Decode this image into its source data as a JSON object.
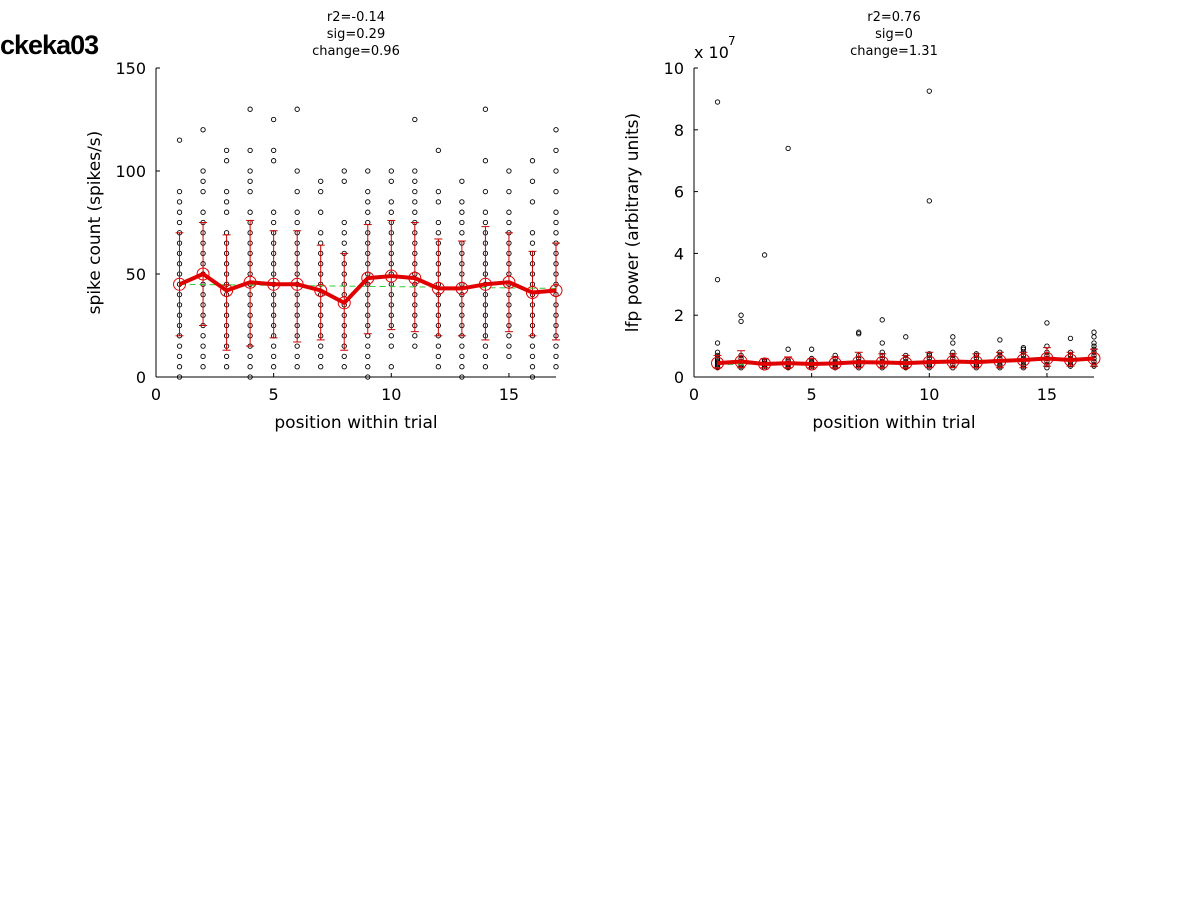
{
  "figure_title": "ckeka03",
  "colors": {
    "mean_line": "#e00000",
    "fit_line": "#33cc33",
    "points": "#000000",
    "error_bars": "#cc0000"
  },
  "chart_data": [
    {
      "type": "scatter",
      "stats": [
        "r2=-0.14",
        "sig=0.29",
        "change=0.96"
      ],
      "xlabel": "position within trial",
      "ylabel": "spike count (spikes/s)",
      "xlim": [
        0,
        17
      ],
      "ylim": [
        0,
        150
      ],
      "xticks": [
        "0",
        "5",
        "10",
        "15"
      ],
      "yticks": [
        "0",
        "50",
        "100",
        "150"
      ],
      "exponent_label": "",
      "x": [
        1,
        2,
        3,
        4,
        5,
        6,
        7,
        8,
        9,
        10,
        11,
        12,
        13,
        14,
        15,
        16,
        17
      ],
      "mean": [
        45,
        50,
        42,
        46,
        45,
        45,
        42,
        36,
        48,
        49,
        48,
        43,
        43,
        45,
        46,
        41,
        42
      ],
      "error_low": [
        20,
        25,
        13,
        15,
        19,
        17,
        18,
        13,
        21,
        23,
        22,
        20,
        20,
        18,
        22,
        20,
        18
      ],
      "error_high": [
        70,
        75,
        69,
        76,
        71,
        71,
        64,
        60,
        74,
        76,
        75,
        67,
        66,
        73,
        70,
        61,
        65
      ],
      "fit": {
        "start": 45,
        "end": 43
      },
      "points": [
        [
          1,
          [
            0,
            5,
            10,
            15,
            20,
            25,
            30,
            35,
            40,
            45,
            50,
            55,
            60,
            65,
            70,
            75,
            80,
            85,
            90,
            115
          ]
        ],
        [
          2,
          [
            5,
            10,
            15,
            20,
            25,
            30,
            35,
            40,
            45,
            50,
            55,
            60,
            65,
            70,
            75,
            80,
            90,
            95,
            100,
            120
          ]
        ],
        [
          3,
          [
            5,
            10,
            15,
            20,
            25,
            30,
            35,
            40,
            45,
            50,
            55,
            60,
            65,
            70,
            80,
            85,
            90,
            105,
            110
          ]
        ],
        [
          4,
          [
            0,
            5,
            10,
            15,
            20,
            25,
            30,
            35,
            40,
            45,
            50,
            55,
            60,
            65,
            70,
            75,
            80,
            90,
            95,
            100,
            110,
            130
          ]
        ],
        [
          5,
          [
            5,
            10,
            15,
            20,
            25,
            30,
            35,
            40,
            45,
            50,
            55,
            60,
            65,
            70,
            75,
            80,
            105,
            110,
            125
          ]
        ],
        [
          6,
          [
            5,
            10,
            15,
            20,
            25,
            30,
            35,
            40,
            45,
            50,
            55,
            60,
            65,
            70,
            75,
            80,
            90,
            100,
            130
          ]
        ],
        [
          7,
          [
            5,
            10,
            15,
            20,
            25,
            30,
            35,
            40,
            45,
            50,
            55,
            60,
            65,
            70,
            80,
            90,
            95
          ]
        ],
        [
          8,
          [
            5,
            10,
            15,
            20,
            25,
            30,
            35,
            40,
            45,
            50,
            55,
            60,
            65,
            70,
            75,
            95,
            100
          ]
        ],
        [
          9,
          [
            0,
            5,
            10,
            15,
            20,
            25,
            30,
            35,
            40,
            45,
            50,
            55,
            60,
            65,
            70,
            75,
            80,
            85,
            90,
            100
          ]
        ],
        [
          10,
          [
            5,
            15,
            20,
            25,
            30,
            35,
            40,
            45,
            50,
            55,
            60,
            65,
            70,
            75,
            80,
            85,
            95,
            100
          ]
        ],
        [
          11,
          [
            15,
            20,
            25,
            30,
            35,
            40,
            45,
            50,
            55,
            60,
            65,
            70,
            75,
            80,
            85,
            90,
            95,
            100,
            125
          ]
        ],
        [
          12,
          [
            5,
            10,
            15,
            20,
            25,
            30,
            35,
            40,
            45,
            50,
            55,
            60,
            65,
            70,
            75,
            85,
            90,
            110
          ]
        ],
        [
          13,
          [
            0,
            5,
            10,
            15,
            20,
            25,
            30,
            35,
            40,
            45,
            50,
            55,
            60,
            65,
            70,
            75,
            80,
            85,
            95
          ]
        ],
        [
          14,
          [
            5,
            10,
            15,
            20,
            25,
            30,
            35,
            40,
            45,
            50,
            55,
            60,
            65,
            70,
            75,
            80,
            90,
            105,
            130
          ]
        ],
        [
          15,
          [
            10,
            15,
            20,
            25,
            30,
            35,
            40,
            45,
            50,
            55,
            60,
            65,
            70,
            75,
            80,
            90,
            100
          ]
        ],
        [
          16,
          [
            0,
            5,
            10,
            15,
            20,
            25,
            30,
            35,
            40,
            45,
            50,
            55,
            60,
            65,
            70,
            85,
            95,
            105
          ]
        ],
        [
          17,
          [
            5,
            10,
            15,
            20,
            25,
            30,
            35,
            40,
            45,
            50,
            55,
            60,
            65,
            70,
            75,
            80,
            90,
            100,
            110,
            120
          ]
        ]
      ]
    },
    {
      "type": "scatter",
      "stats": [
        "r2=0.76",
        "sig=0",
        "change=1.31"
      ],
      "xlabel": "position within trial",
      "ylabel": "lfp power (arbitrary units)",
      "xlim": [
        0,
        17
      ],
      "ylim": [
        0,
        10
      ],
      "xticks": [
        "0",
        "5",
        "10",
        "15"
      ],
      "yticks": [
        "0",
        "2",
        "4",
        "6",
        "8",
        "10"
      ],
      "exponent_label": "x 10",
      "exponent_power": "7",
      "x": [
        1,
        2,
        3,
        4,
        5,
        6,
        7,
        8,
        9,
        10,
        11,
        12,
        13,
        14,
        15,
        16,
        17
      ],
      "mean": [
        0.45,
        0.5,
        0.42,
        0.45,
        0.42,
        0.44,
        0.48,
        0.47,
        0.45,
        0.48,
        0.5,
        0.48,
        0.52,
        0.55,
        0.6,
        0.55,
        0.6
      ],
      "error_low": [
        0.3,
        0.3,
        0.3,
        0.3,
        0.3,
        0.3,
        0.3,
        0.3,
        0.3,
        0.3,
        0.3,
        0.3,
        0.3,
        0.3,
        0.35,
        0.35,
        0.35
      ],
      "error_high": [
        0.7,
        0.85,
        0.6,
        0.65,
        0.6,
        0.65,
        0.8,
        0.75,
        0.7,
        0.8,
        0.75,
        0.75,
        0.8,
        0.8,
        0.95,
        0.8,
        0.9
      ],
      "fit": {
        "start": 0.4,
        "end": 0.6
      },
      "points": [
        [
          1,
          [
            0.3,
            0.35,
            0.4,
            0.45,
            0.5,
            0.55,
            0.6,
            0.7,
            0.8,
            1.1,
            3.15,
            8.9
          ]
        ],
        [
          2,
          [
            0.3,
            0.35,
            0.4,
            0.5,
            0.6,
            0.7,
            1.8,
            2.0
          ]
        ],
        [
          3,
          [
            0.3,
            0.35,
            0.4,
            0.45,
            0.5,
            0.55,
            3.95
          ]
        ],
        [
          4,
          [
            0.3,
            0.35,
            0.4,
            0.45,
            0.5,
            0.55,
            0.9,
            7.4
          ]
        ],
        [
          5,
          [
            0.3,
            0.35,
            0.4,
            0.45,
            0.5,
            0.6,
            0.9
          ]
        ],
        [
          6,
          [
            0.3,
            0.35,
            0.4,
            0.45,
            0.5,
            0.6,
            0.7
          ]
        ],
        [
          7,
          [
            0.3,
            0.35,
            0.4,
            0.5,
            0.6,
            0.7,
            1.4,
            1.45
          ]
        ],
        [
          8,
          [
            0.3,
            0.4,
            0.5,
            0.6,
            0.7,
            0.8,
            1.1,
            1.85
          ]
        ],
        [
          9,
          [
            0.3,
            0.35,
            0.4,
            0.5,
            0.6,
            0.7,
            1.3
          ]
        ],
        [
          10,
          [
            0.3,
            0.35,
            0.4,
            0.5,
            0.6,
            0.7,
            0.75,
            5.7,
            9.25
          ]
        ],
        [
          11,
          [
            0.3,
            0.4,
            0.5,
            0.6,
            0.7,
            0.8,
            1.1,
            1.3
          ]
        ],
        [
          12,
          [
            0.3,
            0.35,
            0.4,
            0.5,
            0.6,
            0.7,
            0.75
          ]
        ],
        [
          13,
          [
            0.3,
            0.35,
            0.4,
            0.5,
            0.6,
            0.7,
            0.8,
            1.2
          ]
        ],
        [
          14,
          [
            0.3,
            0.35,
            0.4,
            0.5,
            0.6,
            0.7,
            0.8,
            0.9,
            0.95
          ]
        ],
        [
          15,
          [
            0.3,
            0.4,
            0.5,
            0.6,
            0.7,
            0.8,
            1.0,
            1.75
          ]
        ],
        [
          16,
          [
            0.35,
            0.4,
            0.5,
            0.6,
            0.7,
            0.8,
            1.25
          ]
        ],
        [
          17,
          [
            0.35,
            0.4,
            0.5,
            0.6,
            0.7,
            0.8,
            0.9,
            1.0,
            1.1,
            1.3,
            1.45
          ]
        ]
      ]
    }
  ]
}
